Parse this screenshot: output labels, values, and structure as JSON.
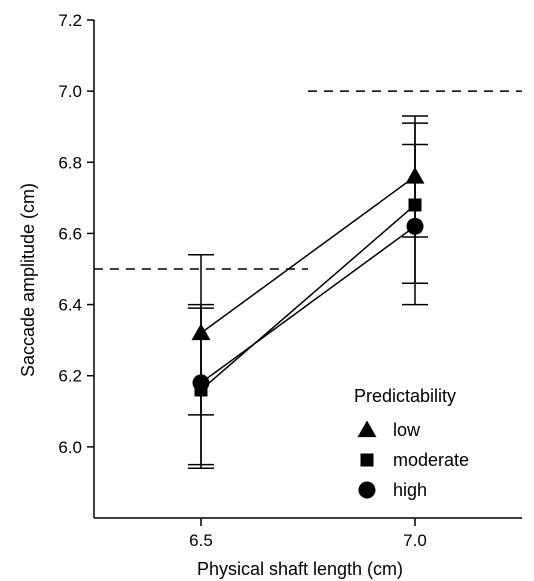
{
  "chart_data": {
    "type": "line",
    "xlabel": "Physical shaft length (cm)",
    "ylabel": "Saccade amplitude (cm)",
    "x": [
      6.5,
      7.0
    ],
    "x_tick_labels": [
      "6.5",
      "7.0"
    ],
    "xlim": [
      6.25,
      7.25
    ],
    "ylim": [
      5.8,
      7.2
    ],
    "y_ticks": [
      6.0,
      6.2,
      6.4,
      6.6,
      6.8,
      7.0,
      7.2
    ],
    "y_tick_labels": [
      "6.0",
      "6.2",
      "6.4",
      "6.6",
      "6.8",
      "7.0",
      "7.2"
    ],
    "grid": false,
    "legend_position": "bottom-right",
    "legend_title": "Predictability",
    "series": [
      {
        "name": "low",
        "marker": "triangle",
        "values": [
          6.32,
          6.76
        ],
        "err_low": [
          6.09,
          6.59
        ],
        "err_high": [
          6.54,
          6.93
        ]
      },
      {
        "name": "moderate",
        "marker": "square",
        "values": [
          6.16,
          6.68
        ],
        "err_low": [
          5.95,
          6.46
        ],
        "err_high": [
          6.39,
          6.91
        ]
      },
      {
        "name": "high",
        "marker": "circle",
        "values": [
          6.18,
          6.62
        ],
        "err_low": [
          5.94,
          6.4
        ],
        "err_high": [
          6.4,
          6.85
        ]
      }
    ],
    "reference_lines": [
      {
        "x_range": [
          6.25,
          6.75
        ],
        "y": 6.5,
        "style": "dashed"
      },
      {
        "x_range": [
          6.75,
          7.25
        ],
        "y": 7.0,
        "style": "dashed"
      }
    ],
    "colors": {
      "line": "#000000",
      "marker": "#000000"
    }
  }
}
